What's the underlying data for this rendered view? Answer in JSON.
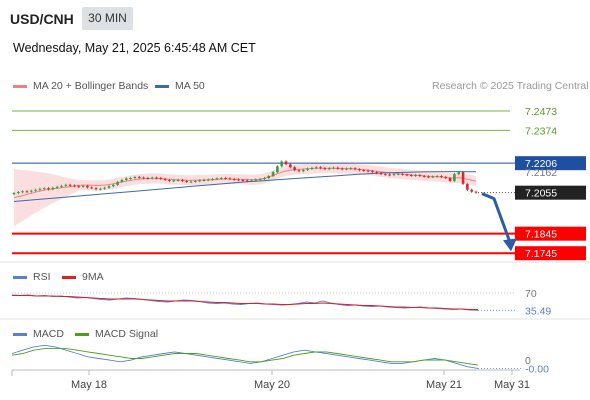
{
  "header": {
    "symbol": "USD/CNH",
    "timeframe": "30 MIN",
    "datetime": "Wednesday, May 21, 2025 6:45:48 AM CET"
  },
  "legend": {
    "ma20_label": "MA 20 + Bollinger Bands",
    "ma50_label": "MA 50",
    "credit": "Research © 2025 Trading Central",
    "rsi_label": "RSI",
    "rsi_ma_label": "9MA",
    "macd_label": "MACD",
    "macd_signal_label": "MACD Signal"
  },
  "colors": {
    "candle_up": "#3a9b3a",
    "candle_down": "#d42a2a",
    "bollinger_fill": "#f9d4d6",
    "ma20": "#f08080",
    "ma50": "#3a6ab0",
    "support": "#ff0000",
    "resistance": "#77b63b",
    "pivot": "#1f4fa0",
    "arrow": "#2b5da0",
    "rsi": "#5a7fd6",
    "rsi_ma": "#e02020",
    "macd": "#5a7fd6",
    "macd_signal": "#4a9e1a"
  },
  "chart_data": [
    {
      "type": "line",
      "panel": "price",
      "x_axis": {
        "ticks": [
          "May 18",
          "May 20",
          "May 21",
          "May 31"
        ]
      },
      "y_range": [
        7.17,
        7.255
      ],
      "levels": [
        {
          "value": 7.2473,
          "label": "7.2473",
          "kind": "resistance"
        },
        {
          "value": 7.2374,
          "label": "7.2374",
          "kind": "resistance"
        },
        {
          "value": 7.2206,
          "label": "7.2206",
          "kind": "pivot"
        },
        {
          "value": 7.2162,
          "label": "7.2162",
          "kind": "ma50"
        },
        {
          "value": 7.2055,
          "label": "7.2055",
          "kind": "last"
        },
        {
          "value": 7.1845,
          "label": "7.1845",
          "kind": "support"
        },
        {
          "value": 7.1745,
          "label": "7.1745",
          "kind": "support"
        }
      ],
      "close_series": [
        7.2053,
        7.2058,
        7.2062,
        7.206,
        7.2065,
        7.207,
        7.2075,
        7.2078,
        7.2072,
        7.208,
        7.2085,
        7.209,
        7.2095,
        7.2092,
        7.2088,
        7.2085,
        7.209,
        7.2082,
        7.2078,
        7.2072,
        7.2075,
        7.208,
        7.2088,
        7.2095,
        7.211,
        7.212,
        7.2128,
        7.213,
        7.2135,
        7.2132,
        7.213,
        7.2128,
        7.2132,
        7.213,
        7.2125,
        7.212,
        7.2115,
        7.2118,
        7.212,
        7.2115,
        7.211,
        7.2112,
        7.2115,
        7.2118,
        7.212,
        7.2122,
        7.2125,
        7.2128,
        7.213,
        7.2128,
        7.2125,
        7.2122,
        7.212,
        7.2118,
        7.2115,
        7.2118,
        7.2122,
        7.2125,
        7.213,
        7.214,
        7.216,
        7.219,
        7.2215,
        7.22,
        7.2185,
        7.217,
        7.2165,
        7.2172,
        7.2178,
        7.2182,
        7.2185,
        7.218,
        7.2176,
        7.218,
        7.2183,
        7.2179,
        7.2175,
        7.2178,
        7.218,
        7.2175,
        7.217,
        7.2168,
        7.2165,
        7.216,
        7.2155,
        7.215,
        7.2148,
        7.2145,
        7.215,
        7.2152,
        7.2148,
        7.2145,
        7.2142,
        7.2145,
        7.214,
        7.2138,
        7.2135,
        7.2138,
        7.214,
        7.2135,
        7.213,
        7.2115,
        7.215,
        7.216,
        7.21,
        7.207,
        7.206,
        7.2055
      ],
      "ma20_series": [
        7.203,
        7.2035,
        7.204,
        7.2046,
        7.2052,
        7.2058,
        7.2063,
        7.2068,
        7.2072,
        7.2075,
        7.2078,
        7.208,
        7.2083,
        7.2086,
        7.2089,
        7.2092,
        7.2094,
        7.2094,
        7.2093,
        7.2092,
        7.2092,
        7.2094,
        7.2097,
        7.21,
        7.2105,
        7.211,
        7.2114,
        7.2118,
        7.2121,
        7.2124,
        7.2126,
        7.2127,
        7.2128,
        7.2128,
        7.2127,
        7.2125,
        7.2123,
        7.2122,
        7.2121,
        7.212,
        7.2119,
        7.2119,
        7.2119,
        7.212,
        7.212,
        7.2121,
        7.2122,
        7.2123,
        7.2124,
        7.2125,
        7.2125,
        7.2124,
        7.2124,
        7.2123,
        7.2122,
        7.2121,
        7.2122,
        7.2124,
        7.2128,
        7.2135,
        7.2143,
        7.2152,
        7.216,
        7.2166,
        7.217,
        7.2173,
        7.2175,
        7.2176,
        7.2177,
        7.2178,
        7.218,
        7.218,
        7.218,
        7.218,
        7.218,
        7.2179,
        7.2178,
        7.2178,
        7.2177,
        7.2176,
        7.2174,
        7.2172,
        7.217,
        7.2168,
        7.2165,
        7.2162,
        7.2159,
        7.2156,
        7.2154,
        7.2152,
        7.215,
        7.2148,
        7.2146,
        7.2145,
        7.2143,
        7.2141,
        7.2139,
        7.2138,
        7.2137,
        7.2135,
        7.2133,
        7.213,
        7.213,
        7.2131,
        7.2128,
        7.2124,
        7.2119,
        7.2114
      ],
      "ma50_series": [
        7.201,
        7.202,
        7.203,
        7.204,
        7.205,
        7.206,
        7.207,
        7.208,
        7.209,
        7.21,
        7.211,
        7.2118,
        7.2126,
        7.2134,
        7.2142,
        7.215,
        7.2156,
        7.216,
        7.2162,
        7.2163,
        7.2162
      ],
      "series": [
        {
          "name": "MA 20 + Bollinger Bands"
        },
        {
          "name": "MA 50"
        }
      ]
    },
    {
      "type": "line",
      "panel": "rsi",
      "y_range": [
        20,
        80
      ],
      "levels": [
        {
          "value": 70,
          "label": "70"
        }
      ],
      "last_value_label": "35.49",
      "series": [
        {
          "name": "RSI",
          "values": [
            66,
            65,
            66,
            64,
            65,
            63,
            64,
            62,
            60,
            61,
            59,
            57,
            56,
            58,
            60,
            59,
            57,
            55,
            53,
            52,
            54,
            56,
            55,
            53,
            50,
            49,
            50,
            48,
            47,
            49,
            50,
            48,
            47,
            46,
            47,
            49,
            52,
            50,
            54,
            50,
            47,
            45,
            46,
            44,
            43,
            44,
            42,
            41,
            40,
            41,
            42,
            40,
            39,
            38,
            37,
            38,
            36,
            35.49
          ]
        },
        {
          "name": "9MA",
          "values": [
            65,
            65,
            65,
            64,
            64,
            64,
            63,
            63,
            62,
            61,
            60,
            59,
            58,
            58,
            58,
            58,
            57,
            56,
            55,
            54,
            54,
            54,
            54,
            53,
            52,
            51,
            51,
            50,
            49,
            49,
            49,
            48,
            48,
            47,
            47,
            48,
            49,
            49,
            50,
            49,
            48,
            47,
            46,
            45,
            45,
            44,
            43,
            42,
            42,
            41,
            41,
            40,
            40,
            39,
            38,
            38,
            37,
            37
          ]
        }
      ]
    },
    {
      "type": "line",
      "panel": "macd",
      "y_range": [
        -0.006,
        0.011
      ],
      "levels": [
        {
          "value": 0,
          "label": "0"
        }
      ],
      "last_value_label": "-0.00",
      "series": [
        {
          "name": "MACD",
          "values": [
            0.004,
            0.006,
            0.008,
            0.009,
            0.008,
            0.006,
            0.004,
            0.002,
            0.001,
            0.0,
            -0.001,
            0.0,
            0.002,
            0.003,
            0.004,
            0.005,
            0.004,
            0.003,
            0.002,
            0.001,
            0.0,
            -0.001,
            -0.002,
            -0.001,
            0.001,
            0.003,
            0.005,
            0.006,
            0.005,
            0.004,
            0.003,
            0.002,
            0.001,
            0.0,
            -0.001,
            -0.002,
            -0.002,
            -0.001,
            0.0,
            0.001,
            0.0,
            -0.002,
            -0.004,
            -0.005
          ]
        },
        {
          "name": "MACD Signal",
          "values": [
            0.003,
            0.004,
            0.006,
            0.007,
            0.007,
            0.007,
            0.006,
            0.005,
            0.004,
            0.003,
            0.002,
            0.001,
            0.001,
            0.002,
            0.003,
            0.004,
            0.004,
            0.004,
            0.003,
            0.002,
            0.001,
            0.0,
            -0.001,
            -0.001,
            0.0,
            0.001,
            0.003,
            0.004,
            0.005,
            0.005,
            0.004,
            0.003,
            0.002,
            0.001,
            0.0,
            -0.001,
            -0.001,
            -0.001,
            0.0,
            0.0,
            0.0,
            -0.001,
            -0.002,
            -0.003
          ]
        }
      ]
    }
  ]
}
